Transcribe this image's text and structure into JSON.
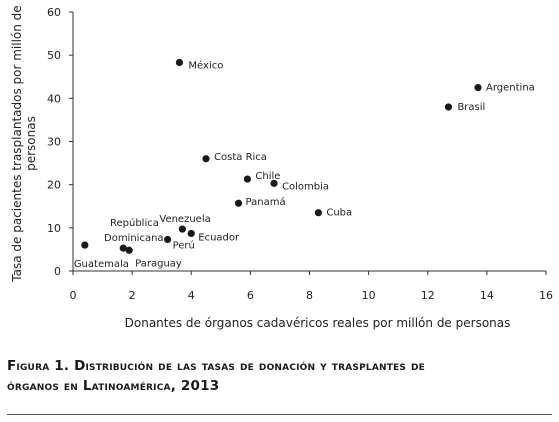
{
  "chart_data": {
    "type": "scatter",
    "xlabel": "Donantes de órganos cadavéricos reales por millón de personas",
    "ylabel_lines": [
      "Tasa de pacientes trasplantados por millón de",
      "personas"
    ],
    "xlim": [
      0,
      16
    ],
    "ylim": [
      0,
      60
    ],
    "xticks": [
      "0",
      "2",
      "4",
      "6",
      "8",
      "10",
      "12",
      "14",
      "16"
    ],
    "yticks": [
      "0",
      "10",
      "20",
      "30",
      "40",
      "50",
      "60"
    ],
    "grid": false,
    "points": [
      {
        "label": "México",
        "x": 3.6,
        "y": 48.3
      },
      {
        "label": "Argentina",
        "x": 13.7,
        "y": 42.5
      },
      {
        "label": "Brasil",
        "x": 12.7,
        "y": 38.0
      },
      {
        "label": "Costa Rica",
        "x": 4.5,
        "y": 26.0
      },
      {
        "label": "Chile",
        "x": 5.9,
        "y": 21.3
      },
      {
        "label": "Colombia",
        "x": 6.8,
        "y": 20.3
      },
      {
        "label": "Panamá",
        "x": 5.6,
        "y": 15.7
      },
      {
        "label": "Cuba",
        "x": 8.3,
        "y": 13.5
      },
      {
        "label": "Venezuela",
        "x": 3.7,
        "y": 9.7
      },
      {
        "label": "Ecuador",
        "x": 4.0,
        "y": 8.7
      },
      {
        "label": "Perú",
        "x": 3.2,
        "y": 7.3
      },
      {
        "label": "República Dominicana",
        "x": 1.7,
        "y": 5.3
      },
      {
        "label": "Paraguay",
        "x": 1.9,
        "y": 4.8
      },
      {
        "label": "Guatemala",
        "x": 0.4,
        "y": 6.0
      }
    ]
  },
  "caption": {
    "line1": "Figura 1. Distribución de las tasas de donación y trasplantes de",
    "line2": "órganos en Latinoamérica, 2013"
  }
}
